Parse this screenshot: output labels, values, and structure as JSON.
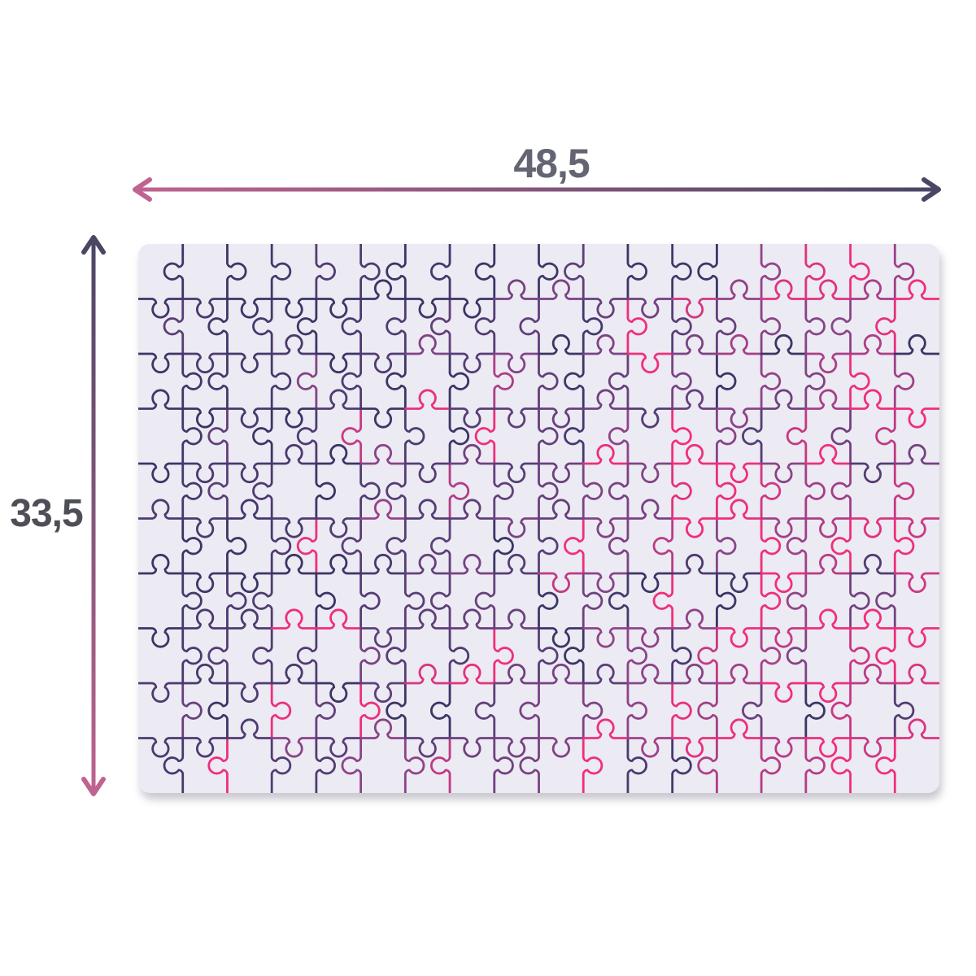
{
  "diagram": {
    "title": "puzzle-dimensions-diagram",
    "dimensions": {
      "width_label": "48,5",
      "height_label": "33,5",
      "width_label_color": "#636573",
      "height_label_color": "#4e4e58"
    },
    "arrows": {
      "pink": "#bf6490",
      "navy": "#4a4664",
      "stroke_width": 5,
      "head_stroke_width": 6
    },
    "puzzle": {
      "columns": 18,
      "rows": 10,
      "board_color": "#eceaf2",
      "stroke_width": 2.8,
      "seed": 11,
      "pop_chance": 0.03,
      "gradient": {
        "x_weight": 0.78,
        "y_weight": 0.18,
        "jitter": 0.85
      },
      "outline_palette": [
        [
          0.0,
          "#3b3566"
        ],
        [
          0.4,
          "#5b3f79"
        ],
        [
          0.65,
          "#8c4489"
        ],
        [
          0.82,
          "#c23a85"
        ],
        [
          1.0,
          "#ef2f7c"
        ]
      ]
    }
  }
}
